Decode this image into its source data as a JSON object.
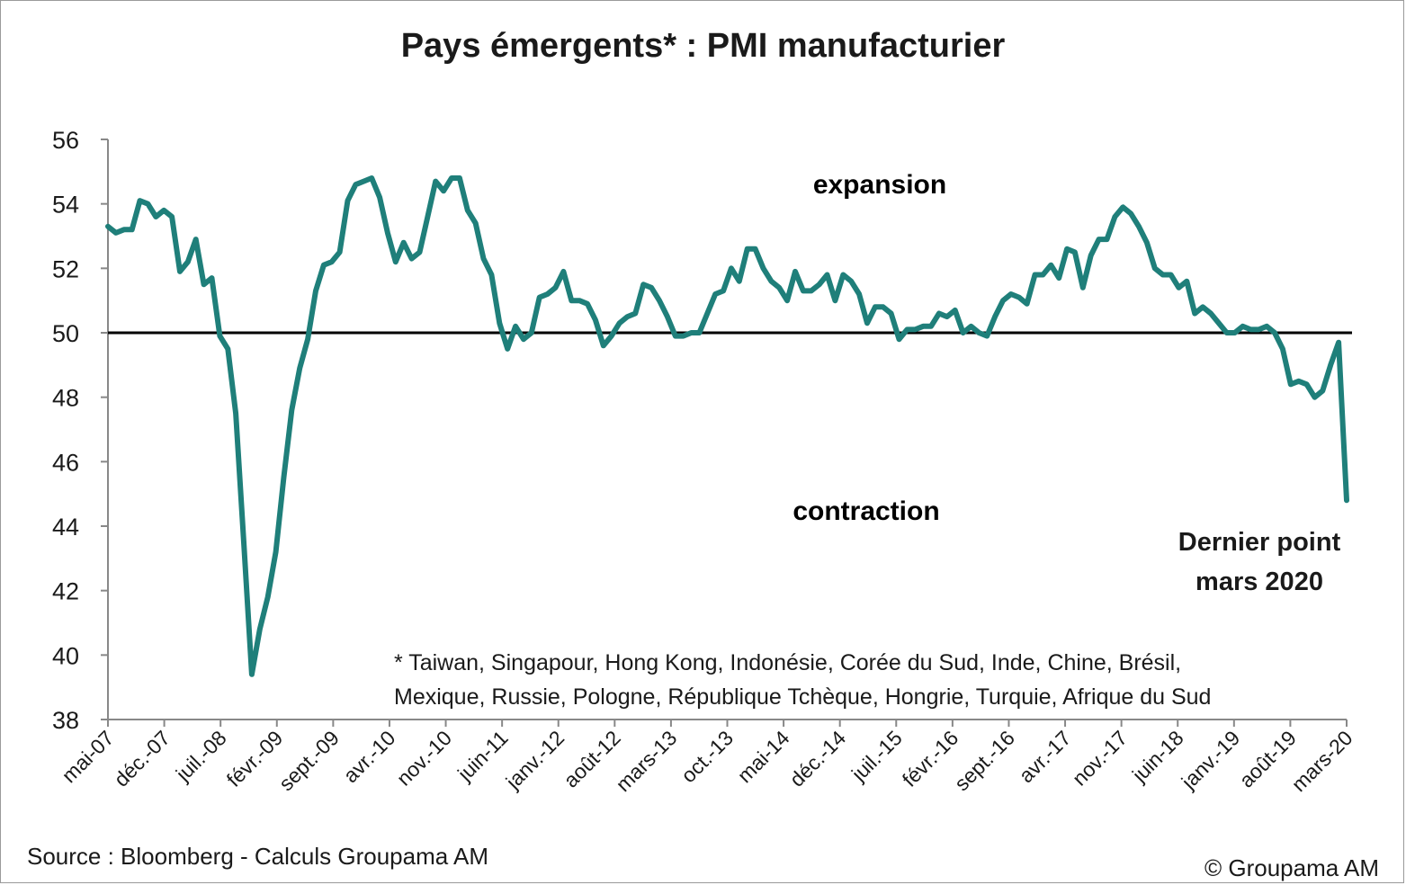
{
  "title": "Pays émergents* : PMI manufacturier",
  "source": "Source : Bloomberg - Calculs Groupama AM",
  "copyright": "© Groupama AM",
  "colors": {
    "line": "#1f7f7a",
    "reference": "#000000",
    "expansion": "#2aa85a",
    "contraction": "#ff1a1a"
  },
  "chart_data": {
    "type": "line",
    "title": "Pays émergents* : PMI manufacturier",
    "xlabel": "",
    "ylabel": "",
    "ylim": [
      38,
      56
    ],
    "yticks": [
      38,
      40,
      42,
      44,
      46,
      48,
      50,
      52,
      54,
      56
    ],
    "xtick_labels": [
      "mai-07",
      "déc.-07",
      "juil.-08",
      "févr.-09",
      "sept.-09",
      "avr.-10",
      "nov.-10",
      "juin-11",
      "janv.-12",
      "août-12",
      "mars-13",
      "oct.-13",
      "mai-14",
      "déc.-14",
      "juil.-15",
      "févr.-16",
      "sept.-16",
      "avr.-17",
      "nov.-17",
      "juin-18",
      "janv.-19",
      "août-19",
      "mars-20"
    ],
    "x_start": "2007-05",
    "x_end": "2020-03",
    "grid": false,
    "legend": "none",
    "reference_line": 50,
    "series": [
      {
        "values": [
          53.3,
          53.1,
          53.2,
          53.2,
          54.1,
          54.0,
          53.6,
          53.8,
          53.6,
          51.9,
          52.2,
          52.9,
          51.5,
          51.7,
          49.9,
          49.5,
          47.5,
          43.5,
          39.4,
          40.8,
          41.8,
          43.2,
          45.5,
          47.6,
          48.9,
          49.8,
          51.3,
          52.1,
          52.2,
          52.5,
          54.1,
          54.6,
          54.7,
          54.8,
          54.2,
          53.1,
          52.2,
          52.8,
          52.3,
          52.5,
          53.6,
          54.7,
          54.4,
          54.8,
          54.8,
          53.8,
          53.4,
          52.3,
          51.8,
          50.3,
          49.5,
          50.2,
          49.8,
          50.0,
          51.1,
          51.2,
          51.4,
          51.9,
          51.0,
          51.0,
          50.9,
          50.4,
          49.6,
          49.9,
          50.3,
          50.5,
          50.6,
          51.5,
          51.4,
          51.0,
          50.5,
          49.9,
          49.9,
          50.0,
          50.0,
          50.6,
          51.2,
          51.3,
          52.0,
          51.6,
          52.6,
          52.6,
          52.0,
          51.6,
          51.4,
          51.0,
          51.9,
          51.3,
          51.3,
          51.5,
          51.8,
          51.0,
          51.8,
          51.6,
          51.2,
          50.3,
          50.8,
          50.8,
          50.6,
          49.8,
          50.1,
          50.1,
          50.2,
          50.2,
          50.6,
          50.5,
          50.7,
          50.0,
          50.2,
          50.0,
          49.9,
          50.5,
          51.0,
          51.2,
          51.1,
          50.9,
          51.8,
          51.8,
          52.1,
          51.7,
          52.6,
          52.5,
          51.4,
          52.4,
          52.9,
          52.9,
          53.6,
          53.9,
          53.7,
          53.3,
          52.8,
          52.0,
          51.8,
          51.8,
          51.4,
          51.6,
          50.6,
          50.8,
          50.6,
          50.3,
          50.0,
          50.0,
          50.2,
          50.1,
          50.1,
          50.2,
          50.0,
          49.5,
          48.4,
          48.5,
          48.4,
          48.0,
          48.2,
          49.0,
          49.7,
          44.8
        ]
      }
    ],
    "annotations": [
      {
        "text": "expansion",
        "color": "#2aa85a"
      },
      {
        "text": "contraction",
        "color": "#ff1a1a"
      },
      {
        "text": "Dernier point",
        "color": "#1a1a1a"
      },
      {
        "text": "mars 2020",
        "color": "#1a1a1a"
      }
    ],
    "footnote": [
      "* Taiwan, Singapour, Hong Kong, Indonésie, Corée du Sud, Inde, Chine, Brésil,",
      "Mexique, Russie, Pologne, République Tchèque, Hongrie, Turquie, Afrique du Sud"
    ]
  }
}
